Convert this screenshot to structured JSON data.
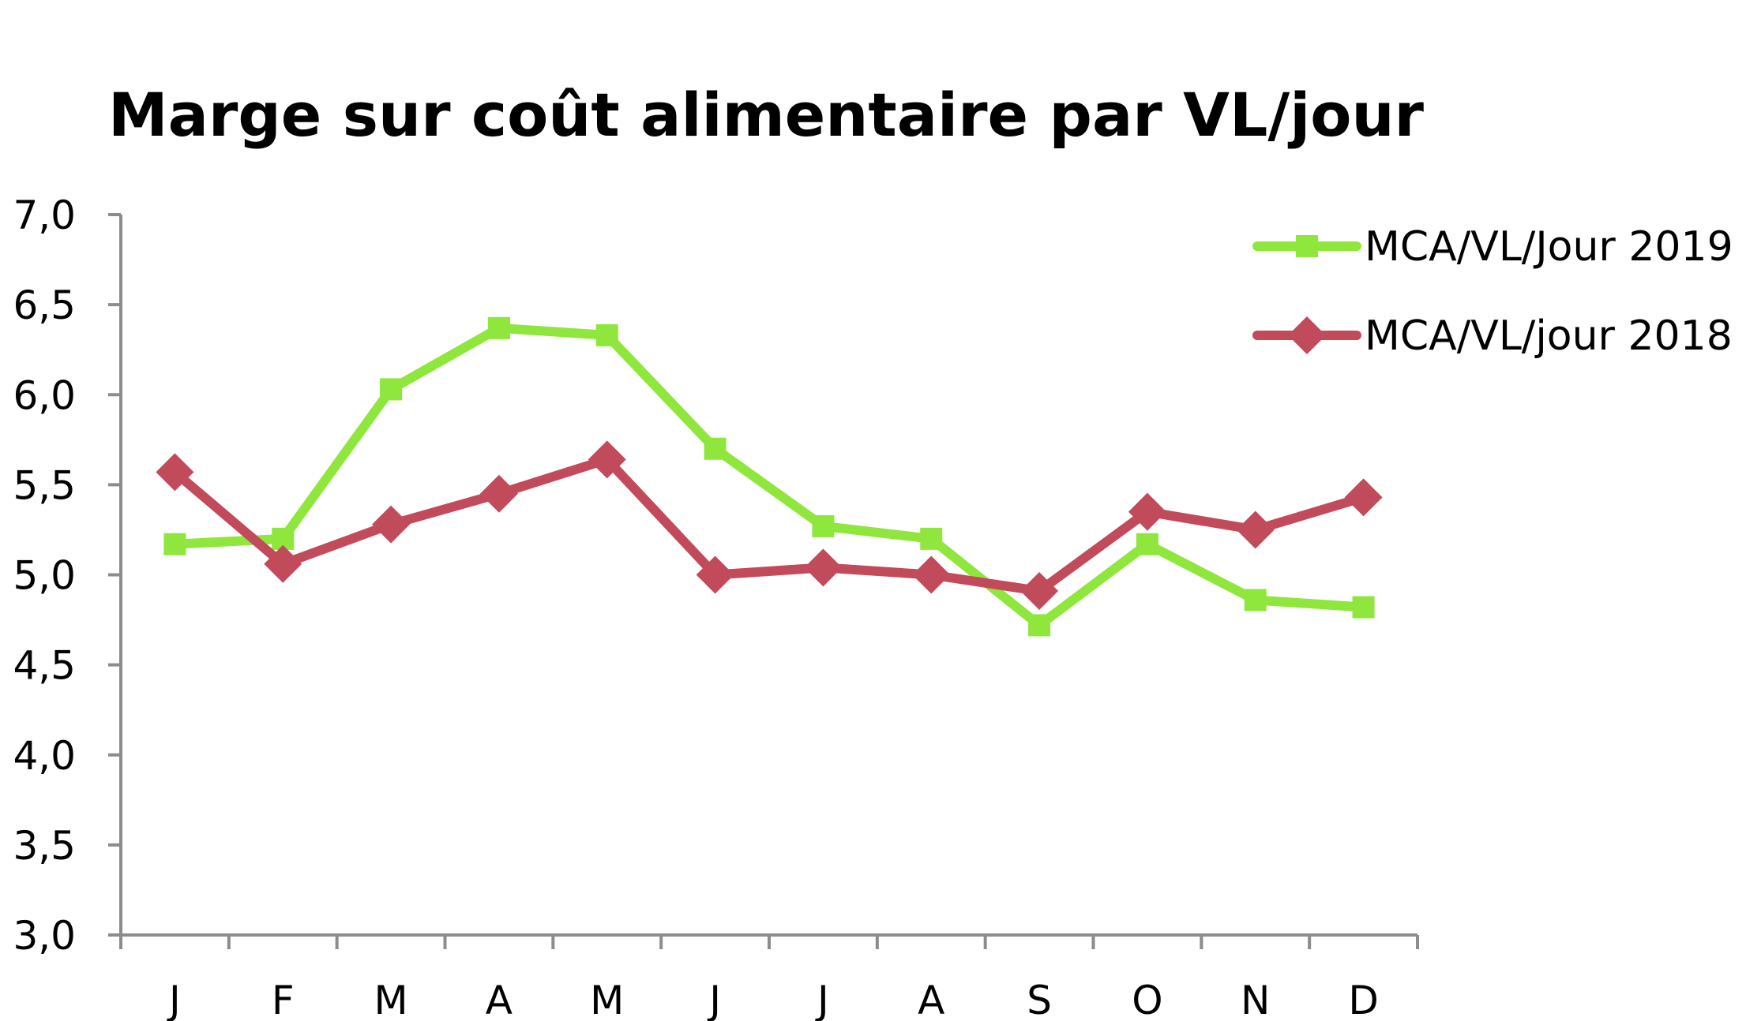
{
  "chart_data": {
    "type": "line",
    "title": "Marge sur coût alimentaire par VL/jour",
    "xlabel": "",
    "ylabel": "",
    "categories": [
      "J",
      "F",
      "M",
      "A",
      "M",
      "J",
      "J",
      "A",
      "S",
      "O",
      "N",
      "D"
    ],
    "ylim": [
      3.0,
      7.0
    ],
    "yticks": [
      "3,0",
      "3,5",
      "4,0",
      "4,5",
      "5,0",
      "5,5",
      "6,0",
      "6,5",
      "7,0"
    ],
    "ytick_values": [
      3.0,
      3.5,
      4.0,
      4.5,
      5.0,
      5.5,
      6.0,
      6.5,
      7.0
    ],
    "grid": false,
    "legend_position": "top-right",
    "series": [
      {
        "name": "MCA/VL/Jour 2019",
        "color": "#8fe63c",
        "marker": "square",
        "values": [
          5.17,
          5.2,
          6.03,
          6.37,
          6.33,
          5.7,
          5.27,
          5.2,
          4.72,
          5.17,
          4.86,
          4.82
        ]
      },
      {
        "name": "MCA/VL/jour 2018",
        "color": "#c14b5b",
        "marker": "diamond",
        "values": [
          5.57,
          5.06,
          5.28,
          5.45,
          5.64,
          5.0,
          5.04,
          5.0,
          4.91,
          5.35,
          5.25,
          5.43
        ]
      }
    ]
  }
}
